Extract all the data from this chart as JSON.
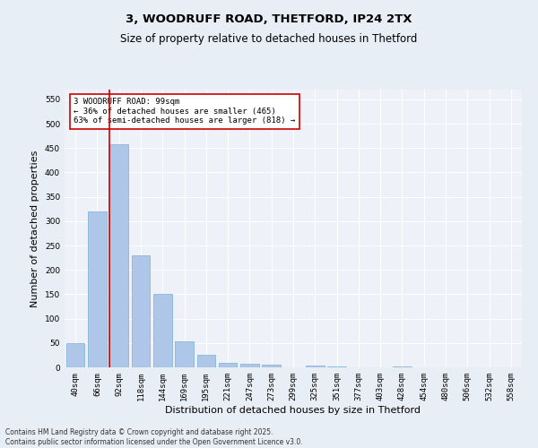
{
  "title_line1": "3, WOODRUFF ROAD, THETFORD, IP24 2TX",
  "title_line2": "Size of property relative to detached houses in Thetford",
  "xlabel": "Distribution of detached houses by size in Thetford",
  "ylabel": "Number of detached properties",
  "categories": [
    "40sqm",
    "66sqm",
    "92sqm",
    "118sqm",
    "144sqm",
    "169sqm",
    "195sqm",
    "221sqm",
    "247sqm",
    "273sqm",
    "299sqm",
    "325sqm",
    "351sqm",
    "377sqm",
    "403sqm",
    "428sqm",
    "454sqm",
    "480sqm",
    "506sqm",
    "532sqm",
    "558sqm"
  ],
  "values": [
    50,
    320,
    457,
    230,
    150,
    53,
    25,
    9,
    8,
    6,
    0,
    4,
    1,
    0,
    0,
    1,
    0,
    0,
    0,
    0,
    0
  ],
  "bar_color": "#aec6e8",
  "bar_edgecolor": "#7aaed6",
  "vline_color": "#cc0000",
  "annotation_text": "3 WOODRUFF ROAD: 99sqm\n← 36% of detached houses are smaller (465)\n63% of semi-detached houses are larger (818) →",
  "annotation_box_edgecolor": "#cc0000",
  "annotation_box_facecolor": "#ffffff",
  "ylim": [
    0,
    570
  ],
  "yticks": [
    0,
    50,
    100,
    150,
    200,
    250,
    300,
    350,
    400,
    450,
    500,
    550
  ],
  "bg_color": "#e8eef6",
  "plot_bg_color": "#eef2f8",
  "footer_text": "Contains HM Land Registry data © Crown copyright and database right 2025.\nContains public sector information licensed under the Open Government Licence v3.0.",
  "title_fontsize": 9.5,
  "subtitle_fontsize": 8.5,
  "tick_fontsize": 6.5,
  "xlabel_fontsize": 8,
  "ylabel_fontsize": 8,
  "footer_fontsize": 5.5
}
